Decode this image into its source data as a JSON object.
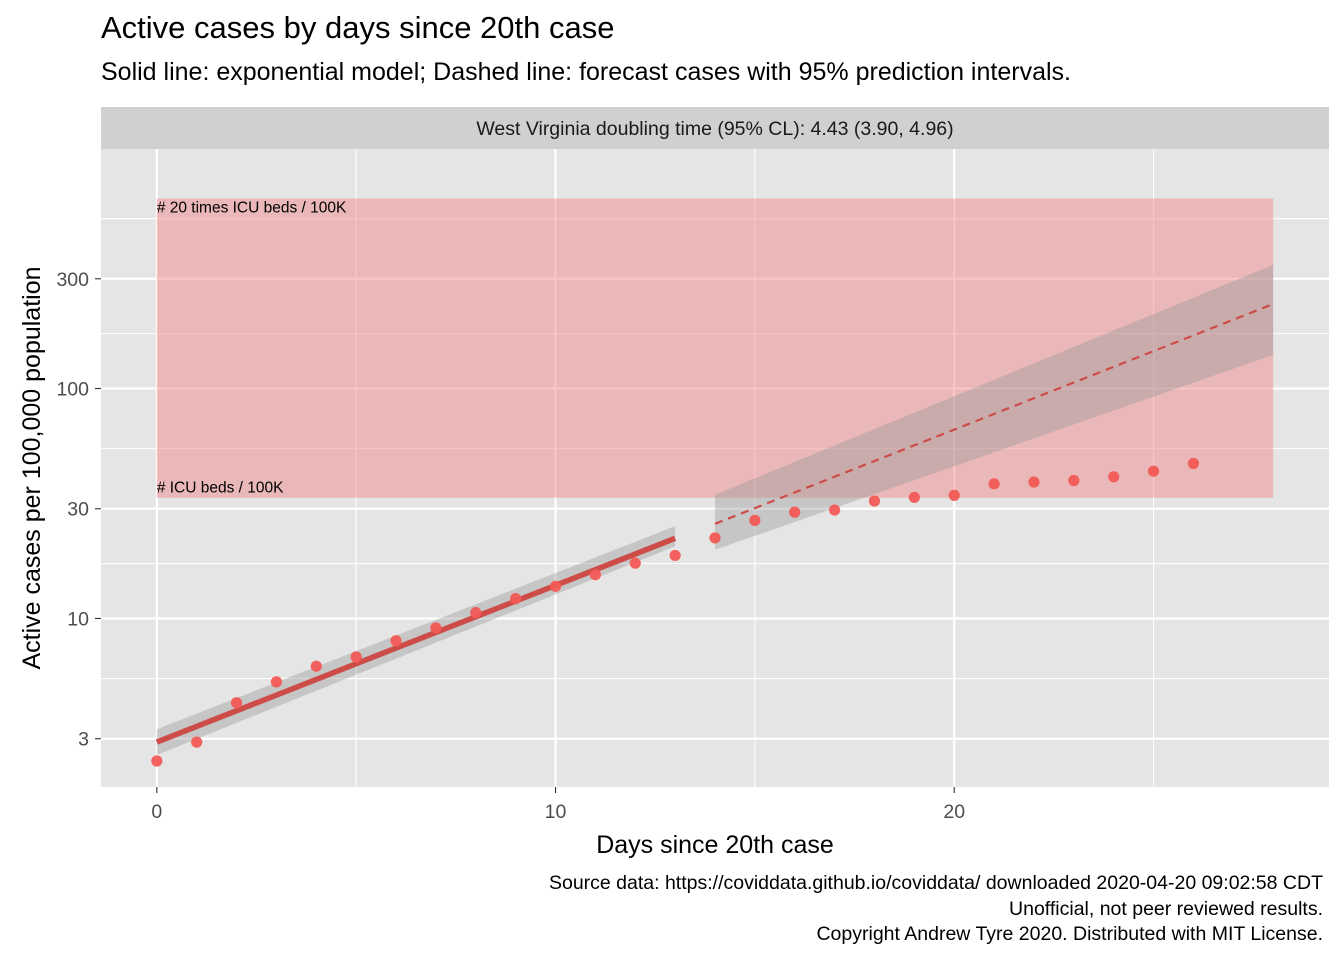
{
  "header": {
    "title": "Active cases by days since 20th case",
    "subtitle": "Solid line: exponential model; Dashed line: forecast cases with 95% prediction intervals."
  },
  "caption": {
    "line1": "Source data: https://coviddata.github.io/coviddata/ downloaded  2020-04-20 09:02:58 CDT",
    "line2": "Unofficial, not peer reviewed results.",
    "line3": "Copyright Andrew Tyre 2020. Distributed with MIT License."
  },
  "colors": {
    "panel_bg": "#e5e5e5",
    "strip_bg": "#d0d0d0",
    "grid": "#ffffff",
    "points": "#f25a55",
    "fit_line": "#cd4c48",
    "ribbon": "#999999",
    "icu_band": "#f08080"
  },
  "chart_data": {
    "type": "scatter",
    "facet_label": "West Virginia doubling time (95% CL): 4.43 (3.90, 4.96)",
    "xlabel": "Days since 20th case",
    "ylabel": "Active cases per 100,000 population",
    "y_scale": "log10",
    "xlim": [
      -1.4,
      29.4
    ],
    "ylim": [
      1.85,
      1100
    ],
    "x_ticks": [
      0,
      10,
      20
    ],
    "x_tick_labels": [
      "0",
      "10",
      "20"
    ],
    "y_ticks": [
      3,
      10,
      30,
      100,
      300
    ],
    "y_tick_labels": [
      "3",
      "10",
      "30",
      "100",
      "300"
    ],
    "grid": true,
    "observed": {
      "x": [
        0,
        1,
        2,
        3,
        4,
        5,
        6,
        7,
        8,
        9,
        10,
        11,
        12,
        13,
        14,
        15,
        16,
        17,
        18,
        19,
        20,
        21,
        22,
        23,
        24,
        25,
        26
      ],
      "y": [
        2.4,
        2.9,
        4.3,
        5.3,
        6.2,
        6.8,
        8.0,
        9.1,
        10.6,
        12.2,
        13.8,
        15.5,
        17.4,
        18.8,
        22.4,
        26.7,
        29.0,
        29.6,
        32.4,
        33.6,
        34.3,
        38.5,
        39.2,
        39.8,
        41.3,
        43.7,
        47.2
      ]
    },
    "fit": {
      "x": [
        0,
        13
      ],
      "y": [
        2.9,
        22.3
      ],
      "ribbon_lower": [
        2.55,
        20.6
      ],
      "ribbon_upper": [
        3.3,
        25.2
      ]
    },
    "forecast": {
      "x": [
        14,
        28
      ],
      "y": [
        25.8,
        233
      ],
      "lower": [
        19.9,
        140
      ],
      "upper": [
        34.5,
        345
      ]
    },
    "icu_band": {
      "xmin": 0,
      "xmax": 28,
      "ymin": 33.5,
      "ymax": 670,
      "label_low": "# ICU beds / 100K",
      "label_high": "# 20 times ICU beds / 100K"
    }
  }
}
